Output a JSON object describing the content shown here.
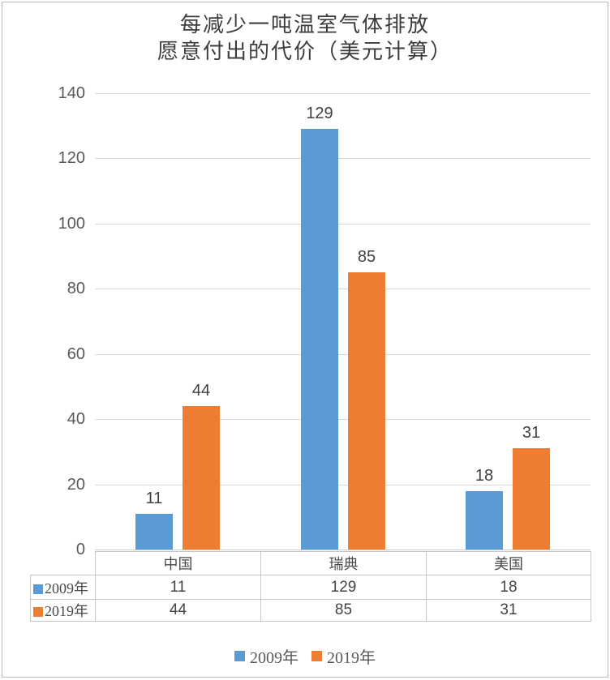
{
  "page": {
    "background": "#ffffff",
    "frame_border_color": "#b9b9b9"
  },
  "chart_data": {
    "type": "bar",
    "title": "每减少一吨温室气体排放 愿意付出的代价（美元计算）",
    "title_lines": [
      "每减少一吨温室气体排放",
      "愿意付出的代价（美元计算）"
    ],
    "xlabel": "",
    "ylabel": "",
    "categories": [
      "中国",
      "瑞典",
      "美国"
    ],
    "series": [
      {
        "name": "2009年",
        "color": "#5B9BD5",
        "values": [
          11,
          129,
          18
        ]
      },
      {
        "name": "2019年",
        "color": "#ED7D31",
        "values": [
          44,
          85,
          31
        ]
      }
    ],
    "ylim": [
      0,
      140
    ],
    "yticks": [
      0,
      20,
      40,
      60,
      80,
      100,
      120,
      140
    ],
    "grid": true,
    "gridline_color": "#d9d9d9",
    "data_labels": true,
    "legend_position": "bottom",
    "data_table": {
      "shown": true,
      "column_headers": [
        "中国",
        "瑞典",
        "美国"
      ],
      "row_headers": [
        "2009年",
        "2019年"
      ],
      "rows": [
        [
          "11",
          "129",
          "18"
        ],
        [
          "44",
          "85",
          "31"
        ]
      ]
    },
    "colors": {
      "series_2009": "#5B9BD5",
      "series_2019": "#ED7D31",
      "axis_text": "#595959",
      "label_text": "#404040",
      "table_border": "#c6c6c6"
    }
  }
}
